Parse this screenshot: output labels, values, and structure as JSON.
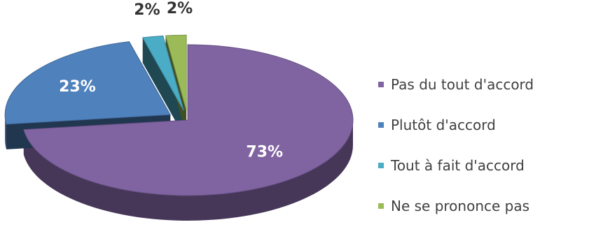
{
  "chart_data": {
    "type": "pie",
    "title": "",
    "labels": [
      "Pas du tout d'accord",
      "Plutôt d'accord",
      "Tout à fait d'accord",
      "Ne se prononce pas"
    ],
    "values": [
      73,
      23,
      2,
      2
    ],
    "value_labels": [
      "73%",
      "23%",
      "2%",
      "2%"
    ],
    "colors": [
      "#8064A2",
      "#4F81BD",
      "#4BACC6",
      "#9BBB59"
    ],
    "exploded": [
      false,
      true,
      true,
      true
    ],
    "style": "3d",
    "legend_position": "right"
  }
}
